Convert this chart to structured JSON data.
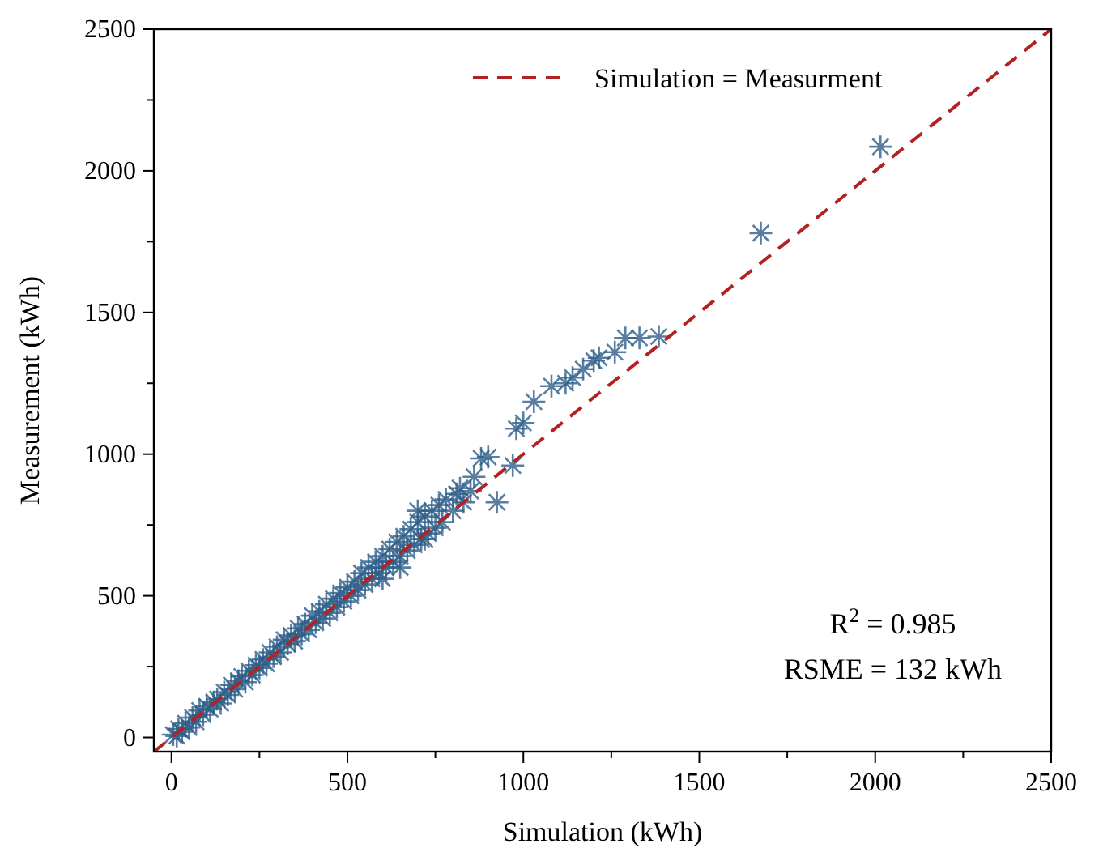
{
  "chart_data": {
    "type": "scatter",
    "xlabel": "Simulation (kWh)",
    "ylabel": "Measurement (kWh)",
    "xlim": [
      -50,
      2500
    ],
    "ylim": [
      -50,
      2500
    ],
    "xticks": [
      0,
      {
        "value": 250,
        "label": null
      },
      500,
      {
        "value": 750,
        "label": null
      },
      1000,
      {
        "value": 1250,
        "label": null
      },
      1500,
      {
        "value": 1750,
        "label": null
      },
      2000,
      {
        "value": 2250,
        "label": null
      },
      2500
    ],
    "yticks": [
      0,
      {
        "value": 250,
        "label": null
      },
      500,
      {
        "value": 750,
        "label": null
      },
      1000,
      {
        "value": 1250,
        "label": null
      },
      1500,
      {
        "value": 1750,
        "label": null
      },
      2000,
      {
        "value": 2250,
        "label": null
      },
      2500
    ],
    "grid": false,
    "legend": "top",
    "series": [
      {
        "color": "#2e5f8a",
        "marker": "cross",
        "x": [
          5,
          15,
          20,
          30,
          40,
          50,
          60,
          70,
          80,
          90,
          100,
          110,
          120,
          130,
          140,
          150,
          160,
          170,
          180,
          190,
          200,
          210,
          220,
          230,
          240,
          250,
          260,
          270,
          280,
          290,
          300,
          310,
          320,
          330,
          340,
          350,
          360,
          370,
          380,
          390,
          400,
          410,
          420,
          430,
          440,
          450,
          460,
          470,
          480,
          490,
          500,
          510,
          520,
          530,
          540,
          550,
          560,
          570,
          580,
          590,
          600,
          610,
          620,
          630,
          640,
          650,
          660,
          670,
          680,
          690,
          700,
          710,
          720,
          730,
          740,
          750,
          760,
          770,
          780,
          800,
          810,
          830,
          600,
          650,
          700,
          720,
          850,
          820,
          860,
          880,
          900,
          925,
          970,
          980,
          1000,
          1030,
          1080,
          1120,
          1140,
          1170,
          1200,
          1215,
          1260,
          1290,
          1330,
          1385,
          1675,
          2015
        ],
        "values": [
          10,
          5,
          30,
          20,
          50,
          35,
          70,
          55,
          95,
          80,
          110,
          100,
          125,
          135,
          120,
          160,
          150,
          185,
          170,
          200,
          215,
          195,
          235,
          220,
          255,
          245,
          275,
          260,
          300,
          285,
          320,
          300,
          345,
          330,
          360,
          340,
          385,
          365,
          400,
          380,
          430,
          405,
          445,
          420,
          470,
          440,
          490,
          460,
          510,
          480,
          530,
          500,
          550,
          520,
          580,
          540,
          600,
          560,
          620,
          580,
          640,
          600,
          665,
          620,
          690,
          640,
          710,
          660,
          735,
          680,
          760,
          700,
          780,
          720,
          800,
          740,
          820,
          760,
          840,
          800,
          860,
          830,
          560,
          600,
          800,
          700,
          870,
          880,
          920,
          985,
          990,
          830,
          960,
          1090,
          1110,
          1185,
          1240,
          1250,
          1270,
          1300,
          1330,
          1340,
          1360,
          1410,
          1410,
          1415,
          1780,
          2085
        ]
      },
      {
        "type": "line",
        "name": "Simulation = Measurment",
        "color": "#b22222",
        "line_style": "dashed",
        "x": [
          -50,
          2500
        ],
        "values": [
          -50,
          2500
        ]
      }
    ],
    "annotations": [
      "R$^{2}$ = 0.985",
      "RSME = 132 kWh"
    ]
  }
}
